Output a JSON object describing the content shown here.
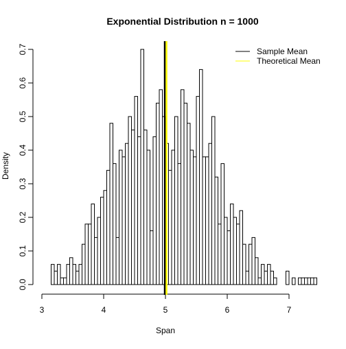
{
  "chart_data": {
    "type": "bar",
    "title": "Exponential Distribution n = 1000",
    "xlabel": "Span",
    "ylabel": "Density",
    "xlim": [
      3,
      7.5
    ],
    "ylim": [
      0,
      0.72
    ],
    "x_ticks": [
      "3",
      "4",
      "5",
      "6",
      "7"
    ],
    "y_ticks": [
      "0.0",
      "0.1",
      "0.2",
      "0.3",
      "0.4",
      "0.5",
      "0.6",
      "0.7"
    ],
    "bin_width": 0.05,
    "bins": [
      {
        "x": 3.15,
        "d": 0.06
      },
      {
        "x": 3.2,
        "d": 0.04
      },
      {
        "x": 3.25,
        "d": 0.06
      },
      {
        "x": 3.3,
        "d": 0.02
      },
      {
        "x": 3.35,
        "d": 0.02
      },
      {
        "x": 3.4,
        "d": 0.06
      },
      {
        "x": 3.45,
        "d": 0.08
      },
      {
        "x": 3.5,
        "d": 0.06
      },
      {
        "x": 3.55,
        "d": 0.04
      },
      {
        "x": 3.6,
        "d": 0.06
      },
      {
        "x": 3.65,
        "d": 0.12
      },
      {
        "x": 3.7,
        "d": 0.18
      },
      {
        "x": 3.75,
        "d": 0.18
      },
      {
        "x": 3.8,
        "d": 0.24
      },
      {
        "x": 3.85,
        "d": 0.14
      },
      {
        "x": 3.9,
        "d": 0.2
      },
      {
        "x": 3.95,
        "d": 0.26
      },
      {
        "x": 4.0,
        "d": 0.28
      },
      {
        "x": 4.05,
        "d": 0.34
      },
      {
        "x": 4.1,
        "d": 0.48
      },
      {
        "x": 4.15,
        "d": 0.36
      },
      {
        "x": 4.2,
        "d": 0.14
      },
      {
        "x": 4.25,
        "d": 0.4
      },
      {
        "x": 4.3,
        "d": 0.38
      },
      {
        "x": 4.35,
        "d": 0.42
      },
      {
        "x": 4.4,
        "d": 0.5
      },
      {
        "x": 4.45,
        "d": 0.46
      },
      {
        "x": 4.5,
        "d": 0.56
      },
      {
        "x": 4.55,
        "d": 0.44
      },
      {
        "x": 4.6,
        "d": 0.7
      },
      {
        "x": 4.65,
        "d": 0.46
      },
      {
        "x": 4.7,
        "d": 0.4
      },
      {
        "x": 4.75,
        "d": 0.16
      },
      {
        "x": 4.8,
        "d": 0.44
      },
      {
        "x": 4.85,
        "d": 0.54
      },
      {
        "x": 4.9,
        "d": 0.58
      },
      {
        "x": 4.95,
        "d": 0.5
      },
      {
        "x": 5.0,
        "d": 0.42
      },
      {
        "x": 5.05,
        "d": 0.34
      },
      {
        "x": 5.1,
        "d": 0.4
      },
      {
        "x": 5.15,
        "d": 0.5
      },
      {
        "x": 5.2,
        "d": 0.36
      },
      {
        "x": 5.25,
        "d": 0.58
      },
      {
        "x": 5.3,
        "d": 0.54
      },
      {
        "x": 5.35,
        "d": 0.48
      },
      {
        "x": 5.4,
        "d": 0.4
      },
      {
        "x": 5.45,
        "d": 0.38
      },
      {
        "x": 5.5,
        "d": 0.56
      },
      {
        "x": 5.55,
        "d": 0.64
      },
      {
        "x": 5.6,
        "d": 0.38
      },
      {
        "x": 5.65,
        "d": 0.38
      },
      {
        "x": 5.7,
        "d": 0.42
      },
      {
        "x": 5.75,
        "d": 0.5
      },
      {
        "x": 5.8,
        "d": 0.32
      },
      {
        "x": 5.85,
        "d": 0.18
      },
      {
        "x": 5.9,
        "d": 0.36
      },
      {
        "x": 5.95,
        "d": 0.2
      },
      {
        "x": 6.0,
        "d": 0.16
      },
      {
        "x": 6.05,
        "d": 0.24
      },
      {
        "x": 6.1,
        "d": 0.2
      },
      {
        "x": 6.15,
        "d": 0.18
      },
      {
        "x": 6.2,
        "d": 0.22
      },
      {
        "x": 6.25,
        "d": 0.12
      },
      {
        "x": 6.3,
        "d": 0.04
      },
      {
        "x": 6.35,
        "d": 0.12
      },
      {
        "x": 6.4,
        "d": 0.14
      },
      {
        "x": 6.45,
        "d": 0.08
      },
      {
        "x": 6.5,
        "d": 0.02
      },
      {
        "x": 6.55,
        "d": 0.06
      },
      {
        "x": 6.6,
        "d": 0.04
      },
      {
        "x": 6.65,
        "d": 0.06
      },
      {
        "x": 6.7,
        "d": 0.04
      },
      {
        "x": 6.75,
        "d": 0.02
      },
      {
        "x": 6.8,
        "d": 0.0
      },
      {
        "x": 6.85,
        "d": 0.0
      },
      {
        "x": 6.9,
        "d": 0.0
      },
      {
        "x": 6.95,
        "d": 0.04
      },
      {
        "x": 7.0,
        "d": 0.0
      },
      {
        "x": 7.05,
        "d": 0.02
      },
      {
        "x": 7.1,
        "d": 0.0
      },
      {
        "x": 7.15,
        "d": 0.02
      },
      {
        "x": 7.2,
        "d": 0.02
      },
      {
        "x": 7.25,
        "d": 0.02
      },
      {
        "x": 7.3,
        "d": 0.02
      },
      {
        "x": 7.35,
        "d": 0.02
      },
      {
        "x": 7.4,
        "d": 0.02
      }
    ],
    "reference_lines": [
      {
        "name": "Sample Mean",
        "x": 5.0,
        "color": "#000000"
      },
      {
        "name": "Theoretical Mean",
        "x": 5.0,
        "color": "#ffff00"
      }
    ],
    "legend_position": "top-right"
  }
}
